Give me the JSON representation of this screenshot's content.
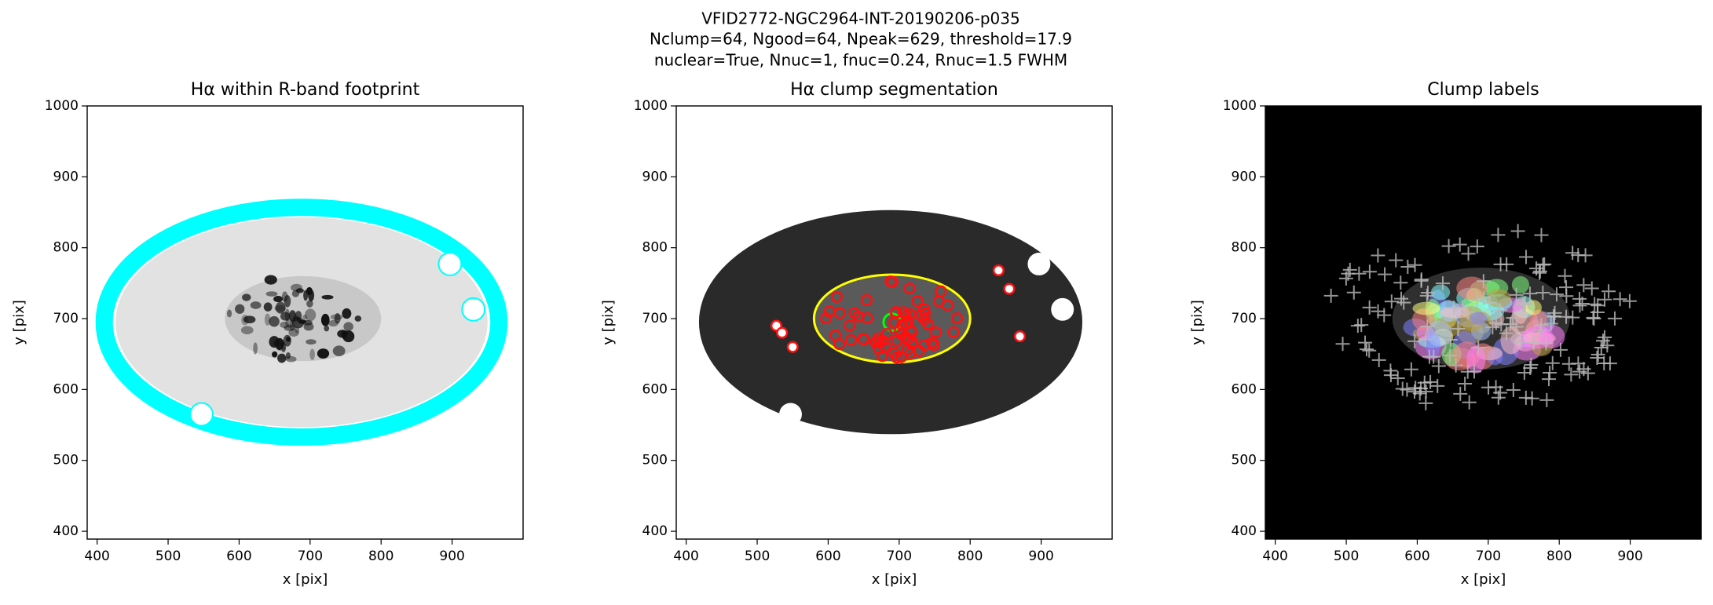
{
  "title_lines": [
    "VFID2772-NGC2964-INT-20190206-p035",
    "Nclump=64, Ngood=64, Npeak=629, threshold=17.9",
    "nuclear=True, Nnuc=1, fnuc=0.24, Rnuc=1.5 FWHM"
  ],
  "chart_data": [
    {
      "type": "image",
      "style": "footprint",
      "title": "Hα within R-band footprint",
      "xlabel": "x [pix]",
      "ylabel": "y [pix]",
      "xlim": [
        386,
        1000
      ],
      "ylim": [
        389,
        1000
      ],
      "xticks": [
        400,
        500,
        600,
        700,
        800,
        900
      ],
      "yticks": [
        400,
        500,
        600,
        700,
        800,
        900,
        1000
      ]
    },
    {
      "type": "image",
      "style": "segmentation",
      "title": "Hα clump segmentation",
      "xlabel": "x [pix]",
      "ylabel": "y [pix]",
      "xlim": [
        386,
        1000
      ],
      "ylim": [
        389,
        1000
      ],
      "xticks": [
        400,
        500,
        600,
        700,
        800,
        900
      ],
      "yticks": [
        400,
        500,
        600,
        700,
        800,
        900,
        1000
      ]
    },
    {
      "type": "image",
      "style": "labels",
      "title": "Clump labels",
      "xlabel": "x [pix]",
      "ylabel": "y [pix]",
      "xlim": [
        386,
        1000
      ],
      "ylim": [
        389,
        1000
      ],
      "xticks": [
        400,
        500,
        600,
        700,
        800,
        900
      ],
      "yticks": [
        400,
        500,
        600,
        700,
        800,
        900,
        1000
      ]
    }
  ]
}
